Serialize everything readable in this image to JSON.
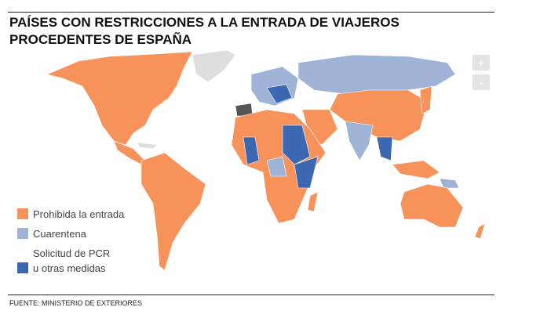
{
  "header": {
    "title_lines": [
      "PAÍSES CON RESTRICCIONES A LA ENTRADA DE VIAJEROS",
      "PROCEDENTES DE ESPAÑA"
    ]
  },
  "controls": {
    "zoom_in": "+",
    "zoom_out": "-"
  },
  "legend": {
    "items": [
      {
        "color": "#f7935a",
        "lines": [
          "Prohibida la entrada"
        ]
      },
      {
        "color": "#9fb3d7",
        "lines": [
          "Cuarentena"
        ]
      },
      {
        "color": "#3c68b1",
        "lines": [
          "Solicitud de PCR",
          "u otras medidas"
        ]
      }
    ]
  },
  "footer": {
    "source": "FUENTE: MINISTERIO DE EXTERIORES"
  }
}
